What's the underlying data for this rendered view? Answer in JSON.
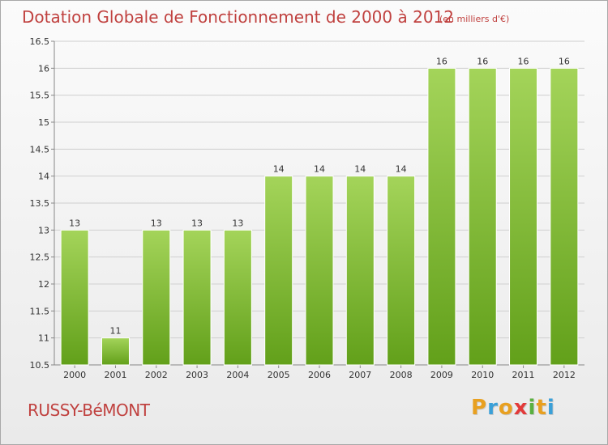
{
  "header": {
    "title": "Dotation Globale de Fonctionnement de 2000 à 2012",
    "unit": "(en milliers d'€)"
  },
  "footer": {
    "commune": "RUSSY-BéMONT",
    "logo_letters": [
      "P",
      "r",
      "o",
      "x",
      "i",
      "t",
      "i"
    ],
    "logo_colors": [
      "#e8a020",
      "#3aa0d8",
      "#e8a020",
      "#e23a3a",
      "#5ab040",
      "#e8a020",
      "#3aa0d8"
    ]
  },
  "colors": {
    "bar_light": "#a4d45a",
    "bar_dark": "#62a01a",
    "text": "#c0413f",
    "grid": "#cfcfcf"
  },
  "chart_data": {
    "type": "bar",
    "title": "Dotation Globale de Fonctionnement de 2000 à 2012",
    "ylabel": "",
    "xlabel": "",
    "categories": [
      "2000",
      "2001",
      "2002",
      "2003",
      "2004",
      "2005",
      "2006",
      "2007",
      "2008",
      "2009",
      "2010",
      "2011",
      "2012"
    ],
    "values": [
      13,
      11,
      13,
      13,
      13,
      14,
      14,
      14,
      14,
      16,
      16,
      16,
      16
    ],
    "ylim": [
      10.5,
      16.5
    ],
    "yticks": [
      "10.5",
      "11",
      "11.5",
      "12",
      "12.5",
      "13",
      "13.5",
      "14",
      "14.5",
      "15",
      "15.5",
      "16",
      "16.5"
    ],
    "grid": true,
    "data_labels": true
  }
}
